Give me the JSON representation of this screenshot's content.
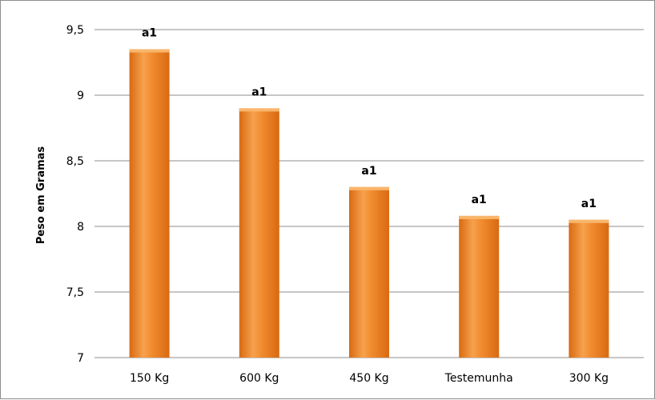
{
  "chart_data": {
    "type": "bar",
    "title": "",
    "xlabel": "",
    "ylabel": "Peso em Gramas",
    "ylim": [
      7,
      9.5
    ],
    "yticks": [
      "7",
      "7,5",
      "8",
      "8,5",
      "9",
      "9,5"
    ],
    "categories": [
      "150 Kg",
      "600 Kg",
      "450 Kg",
      "Testemunha",
      "300 Kg"
    ],
    "values": [
      9.35,
      8.9,
      8.3,
      8.08,
      8.05
    ],
    "data_labels": [
      "a1",
      "a1",
      "a1",
      "a1",
      "a1"
    ],
    "grid": true,
    "legend": "none",
    "colors": {
      "bar": "#f28c30",
      "bar_dark": "#d86a12",
      "bar_light": "#f9b66b",
      "grid": "#8c8c8c"
    }
  }
}
